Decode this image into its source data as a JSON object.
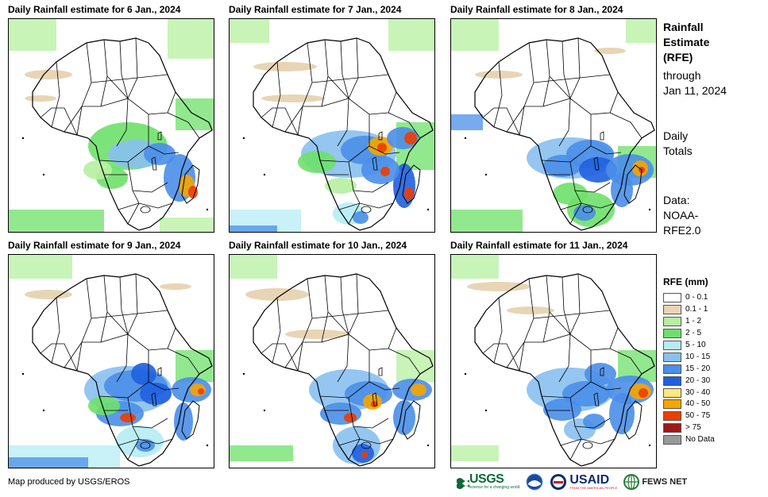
{
  "panels": [
    {
      "title": "Daily Rainfall estimate for 6 Jan., 2024",
      "day": 6
    },
    {
      "title": "Daily Rainfall estimate for 7 Jan., 2024",
      "day": 7
    },
    {
      "title": "Daily Rainfall estimate for 8 Jan., 2024",
      "day": 8
    },
    {
      "title": "Daily Rainfall estimate for 9 Jan., 2024",
      "day": 9
    },
    {
      "title": "Daily Rainfall estimate for 10 Jan., 2024",
      "day": 10
    },
    {
      "title": "Daily Rainfall estimate for 11 Jan., 2024",
      "day": 11
    }
  ],
  "sidebar": {
    "title_lines": [
      "Rainfall",
      "Estimate",
      "(RFE)"
    ],
    "period_lines": [
      "through",
      "Jan 11, 2024"
    ],
    "totals_lines": [
      "Daily",
      "Totals"
    ],
    "data_lines": [
      "Data:",
      "NOAA-",
      "RFE2.0"
    ]
  },
  "legend": {
    "title": "RFE (mm)",
    "items": [
      {
        "label": "0 - 0.1",
        "color": "#ffffff"
      },
      {
        "label": "0.1 - 1",
        "color": "#e8d5b5"
      },
      {
        "label": "1 - 2",
        "color": "#b6f0a0"
      },
      {
        "label": "2 - 5",
        "color": "#6ee06a"
      },
      {
        "label": "5 - 10",
        "color": "#b5ecf5"
      },
      {
        "label": "10 - 15",
        "color": "#88c0f0"
      },
      {
        "label": "15 - 20",
        "color": "#4a8ee8"
      },
      {
        "label": "20 - 30",
        "color": "#1f5fe0"
      },
      {
        "label": "30 - 40",
        "color": "#ffe880"
      },
      {
        "label": "40 - 50",
        "color": "#f5a500"
      },
      {
        "label": "50 - 75",
        "color": "#f03c00"
      },
      {
        "label": "> 75",
        "color": "#a01818"
      },
      {
        "label": "No Data",
        "color": "#999999"
      }
    ]
  },
  "credit": "Map produced by USGS/EROS",
  "logos": {
    "usgs": "USGS",
    "usgs_tagline": "science for a changing world",
    "usaid": "USAID",
    "usaid_tagline": "FROM THE AMERICAN PEOPLE",
    "fews": "FEWS NET"
  }
}
